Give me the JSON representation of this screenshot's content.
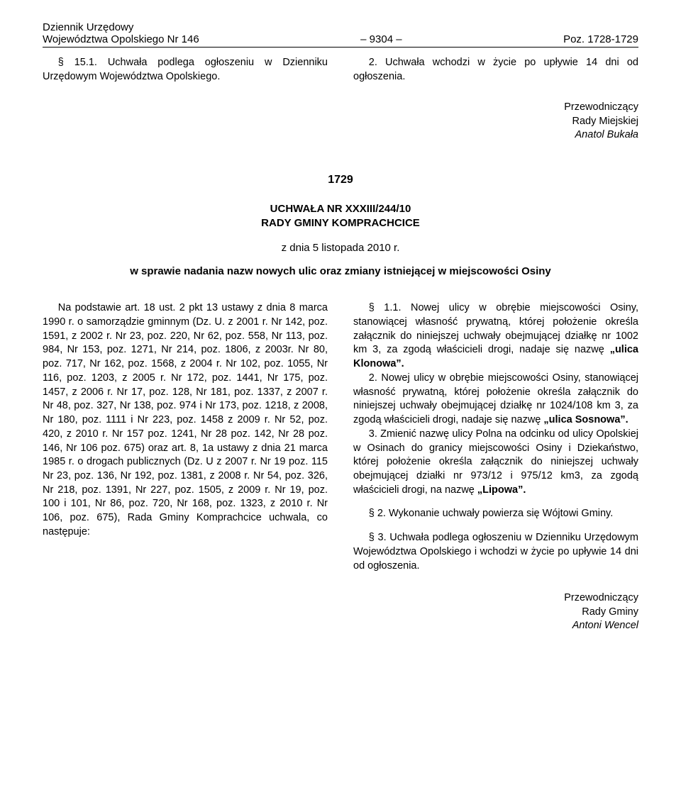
{
  "header": {
    "line1": "Dziennik Urzędowy",
    "line2_left": "Województwa Opolskiego Nr 146",
    "line2_mid": "– 9304 –",
    "line2_right": "Poz. 1728-1729"
  },
  "top": {
    "left_para": "§ 15.1. Uchwała podlega ogłoszeniu w Dzienniku Urzędowym Województwa Opolskiego.",
    "right_para": "2. Uchwała wchodzi w życie po upływie 14 dni od ogłoszenia.",
    "sign_role1": "Przewodniczący",
    "sign_role2": "Rady Miejskiej",
    "sign_name": "Anatol Bukała"
  },
  "act": {
    "number": "1729",
    "title_line1": "UCHWAŁA NR XXXIII/244/10",
    "title_line2": "RADY GMINY KOMPRACHCICE",
    "date": "z dnia 5 listopada 2010 r.",
    "subject": "w sprawie nadania nazw nowych ulic oraz zmiany istniejącej w miejscowości Osiny"
  },
  "body": {
    "left": "Na podstawie art. 18 ust. 2 pkt 13 ustawy z dnia 8 marca 1990 r. o samorządzie gminnym (Dz. U. z 2001 r. Nr 142, poz. 1591, z 2002 r. Nr 23, poz. 220, Nr 62, poz. 558, Nr 113, poz. 984, Nr 153, poz. 1271, Nr 214, poz. 1806, z 2003r. Nr 80, poz. 717, Nr 162, poz. 1568, z 2004 r. Nr 102, poz. 1055, Nr 116, poz. 1203, z 2005 r. Nr 172, poz. 1441, Nr 175, poz. 1457, z 2006 r. Nr 17, poz. 128, Nr 181, poz. 1337, z 2007 r. Nr 48, poz. 327, Nr 138, poz. 974 i Nr 173, poz. 1218, z 2008, Nr 180, poz. 1111 i Nr 223, poz. 1458 z 2009 r. Nr 52, poz. 420, z 2010 r. Nr 157 poz. 1241, Nr 28 poz. 142, Nr 28 poz. 146, Nr 106 poz. 675) oraz art. 8, 1a ustawy z dnia 21 marca 1985 r. o drogach publicznych (Dz. U z 2007 r. Nr 19 poz. 115 Nr 23, poz. 136, Nr 192, poz. 1381, z 2008 r. Nr 54, poz. 326, Nr 218, poz. 1391, Nr 227, poz. 1505, z 2009 r. Nr 19, poz. 100 i 101, Nr 86, poz. 720, Nr 168, poz. 1323, z 2010 r. Nr 106, poz. 675), Rada Gminy Komprachcice uchwala, co następuje:",
    "right": {
      "p1_a": "§ 1.1. Nowej ulicy w obrębie miejscowości Osiny, stanowiącej własność prywatną, której położenie określa załącznik do niniejszej uchwały obejmującej działkę nr 1002 km 3, za zgodą właścicieli drogi, nadaje się nazwę ",
      "p1_bold": "„ulica Klonowa”.",
      "p2_a": "2. Nowej ulicy w obrębie miejscowości Osiny, stanowiącej własność prywatną, której położenie określa załącznik do niniejszej uchwały obejmującej działkę nr 1024/108 km 3, za zgodą właścicieli drogi, nadaje się nazwę ",
      "p2_bold": "„ulica Sosnowa”.",
      "p3_a": "3. Zmienić nazwę ulicy Polna na odcinku od ulicy Opolskiej w Osinach do granicy miejscowości Osiny i Dziekaństwo, której położenie określa załącznik do niniejszej uchwały obejmującej działki nr 973/12 i 975/12 km3, za zgodą właścicieli drogi, na nazwę ",
      "p3_bold": "„Lipowa”.",
      "p4": "§ 2. Wykonanie uchwały powierza się Wójtowi Gminy.",
      "p5": "§ 3. Uchwała podlega ogłoszeniu w Dzienniku Urzędowym Województwa Opolskiego i wchodzi w życie po upływie 14 dni od ogłoszenia."
    },
    "sign_role1": "Przewodniczący",
    "sign_role2": "Rady Gminy",
    "sign_name": "Antoni Wencel"
  }
}
